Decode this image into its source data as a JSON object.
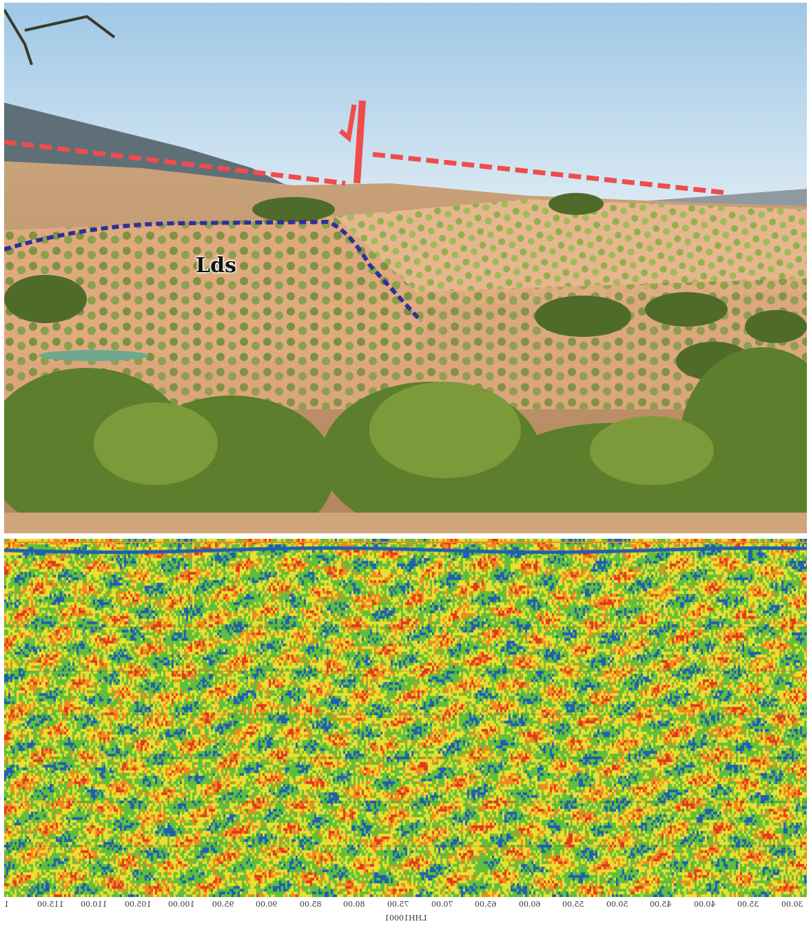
{
  "figure": {
    "photo_annotation": "Lds",
    "colors": {
      "fault_line": "#ef4c4c",
      "contact_line": "#2d2f9e",
      "sky": "#cfe4f2",
      "soil": "#e8b58e",
      "vegetation": "#6f8a35"
    }
  },
  "radargram": {
    "tick_labels": [
      "1",
      "115.00",
      "110.00",
      "105.00",
      "100.00",
      "95.00",
      "90.00",
      "85.00",
      "80.00",
      "75.00",
      "70.00",
      "65.00",
      "60.00",
      "55.00",
      "50.00",
      "45.00",
      "40.00",
      "35.00",
      "30.00"
    ],
    "axis_title": "LHH10001",
    "colors": {
      "blue": "#1f5fb0",
      "green": "#5fbf3a",
      "yellow": "#e8e030",
      "orange": "#f08a20",
      "red": "#e03a1c"
    }
  }
}
